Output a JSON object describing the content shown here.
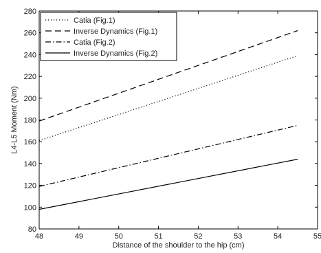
{
  "chart_data": {
    "type": "line",
    "xlabel": "Distance of the shoulder to the hip (cm)",
    "ylabel": "L4-L5 Moment (Nm)",
    "xlim": [
      48,
      55
    ],
    "ylim": [
      80,
      280
    ],
    "xticks": [
      "48",
      "49",
      "50",
      "51",
      "52",
      "53",
      "54",
      "55"
    ],
    "yticks": [
      "80",
      "100",
      "120",
      "140",
      "160",
      "180",
      "200",
      "220",
      "240",
      "260",
      "280"
    ],
    "legend_position": "top-left",
    "grid": false,
    "series": [
      {
        "name": "Catia (Fig.1)",
        "style": "dotted",
        "color": "#000000",
        "x": [
          48,
          54.5
        ],
        "y": [
          161,
          239
        ]
      },
      {
        "name": "Inverse Dynamics (Fig.1)",
        "style": "dashed",
        "color": "#000000",
        "x": [
          48,
          54.5
        ],
        "y": [
          179,
          262
        ]
      },
      {
        "name": "Catia (Fig.2)",
        "style": "dashdot",
        "color": "#000000",
        "x": [
          48,
          54.5
        ],
        "y": [
          119,
          175
        ]
      },
      {
        "name": "Inverse Dynamics (Fig.2)",
        "style": "solid",
        "color": "#000000",
        "x": [
          48,
          54.5
        ],
        "y": [
          98,
          144
        ]
      }
    ]
  }
}
